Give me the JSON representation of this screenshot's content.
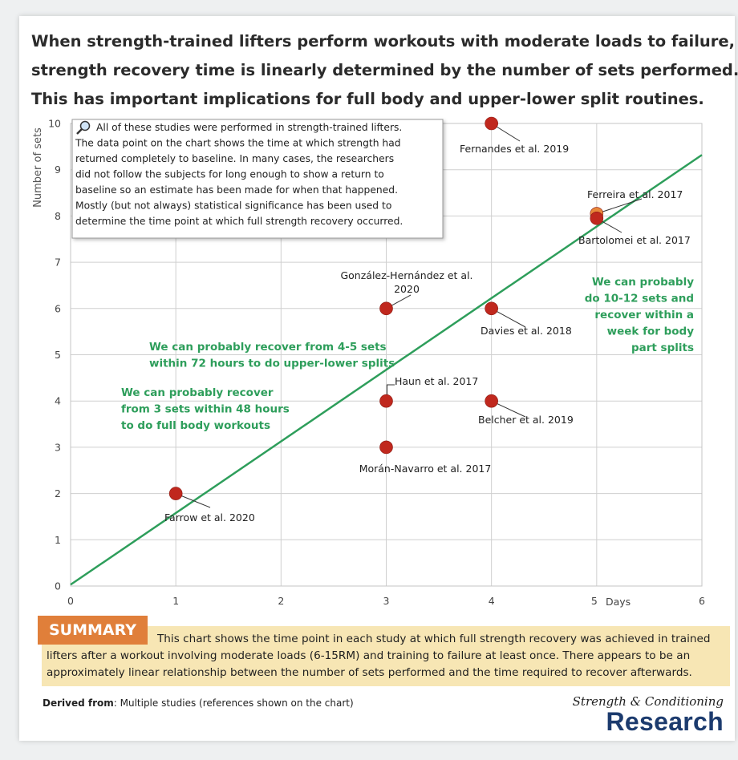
{
  "headline": [
    "When strength-trained lifters perform workouts with moderate loads to failure,",
    "strength recovery time is linearly determined by the number of sets performed.",
    "This has important implications for full body and upper-lower split routines."
  ],
  "chart_data": {
    "type": "scatter",
    "ylabel": "Number of sets",
    "xlabel": "Days",
    "xlim": [
      0,
      6
    ],
    "ylim": [
      0,
      10
    ],
    "xticks": [
      "0",
      "1",
      "2",
      "3",
      "4",
      "5",
      "6"
    ],
    "yticks": [
      "0",
      "1",
      "2",
      "3",
      "4",
      "5",
      "6",
      "7",
      "8",
      "9",
      "10"
    ],
    "grid": true,
    "points": [
      {
        "x": 1,
        "y": 2,
        "label": "Farrow et al. 2020",
        "color": "#c0281e"
      },
      {
        "x": 3,
        "y": 3,
        "label": "Morán-Navarro et al. 2017",
        "color": "#c0281e"
      },
      {
        "x": 3,
        "y": 4,
        "label": "Haun et al. 2017",
        "color": "#c0281e"
      },
      {
        "x": 3,
        "y": 6,
        "label": "González-Hernández et al. 2020",
        "color": "#c0281e"
      },
      {
        "x": 4,
        "y": 4,
        "label": "Belcher et al. 2019",
        "color": "#c0281e"
      },
      {
        "x": 4,
        "y": 6,
        "label": "Davies et al. 2018",
        "color": "#c0281e"
      },
      {
        "x": 4,
        "y": 10,
        "label": "Fernandes et al. 2019",
        "color": "#c0281e"
      },
      {
        "x": 5,
        "y": 8.05,
        "label": "Ferreira et al. 2017",
        "color": "#e8873a"
      },
      {
        "x": 5,
        "y": 7.95,
        "label": "Bartolomei et al. 2017",
        "color": "#c0281e"
      }
    ],
    "trendline": {
      "x": [
        0,
        6
      ],
      "y": [
        0.03,
        9.32
      ],
      "color": "#2e9e5b"
    },
    "annotations": [
      [
        "We can probably recover",
        "from 3 sets within 48 hours",
        "to do full body workouts"
      ],
      [
        "We can probably recover from 4-5 sets",
        "within 72 hours to do upper-lower splits"
      ],
      [
        "We can probably",
        "do 10-12 sets and",
        "recover within a",
        "week for body",
        "part splits"
      ]
    ],
    "note": [
      "All of these studies were performed in strength-trained lifters.",
      "The data point on the chart shows the time at which strength had",
      "returned completely to baseline. In many cases, the researchers",
      "did not follow the subjects for long enough to show a return to",
      "baseline so an estimate has been made for when that happened.",
      "Mostly (but not always) statistical significance has been used to",
      "determine the time point at which full strength recovery occurred."
    ]
  },
  "summary": {
    "badge": "SUMMARY",
    "lines": [
      "This chart shows the time point in each study at which full strength recovery was achieved in trained",
      "lifters after a workout involving moderate loads (6-15RM) and training to failure at least once. There appears to be an",
      "approximately linear relationship between the number of sets performed and the time required to recover afterwards."
    ]
  },
  "derived": {
    "label": "Derived from",
    "text": ": Multiple studies (references shown on the chart)"
  },
  "logo": {
    "script": "Strength & Conditioning",
    "word": "Research"
  },
  "colors": {
    "accent": "#e07f3a",
    "summary_bg": "#f7e6b4",
    "trend": "#2e9e5b",
    "point": "#c0281e",
    "brand": "#1c3b6e"
  }
}
